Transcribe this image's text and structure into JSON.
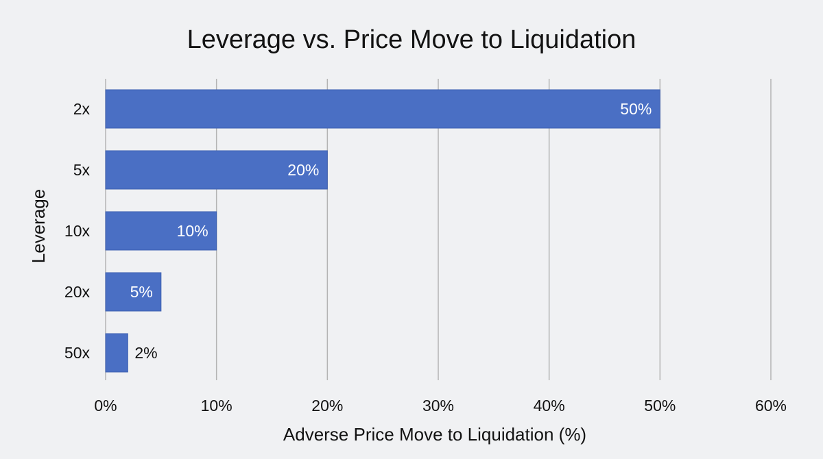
{
  "chart_data": {
    "type": "bar",
    "orientation": "horizontal",
    "title": "Leverage vs. Price Move to Liquidation",
    "xlabel": "Adverse Price Move to Liquidation (%)",
    "ylabel": "Leverage",
    "categories": [
      "2x",
      "5x",
      "10x",
      "20x",
      "50x"
    ],
    "values": [
      50,
      20,
      10,
      5,
      2
    ],
    "data_labels": [
      "50%",
      "20%",
      "10%",
      "5%",
      "2%"
    ],
    "xlim": [
      0,
      60
    ],
    "x_ticks": [
      0,
      10,
      20,
      30,
      40,
      50,
      60
    ],
    "x_tick_labels": [
      "0%",
      "10%",
      "20%",
      "30%",
      "40%",
      "50%",
      "60%"
    ],
    "grid": "vertical",
    "legend": "none",
    "colors": {
      "bar": "#4a6fc4",
      "bar_edge": "#3c5fb0",
      "gridline": "#b4b4b4",
      "label_inside": "#ffffff",
      "label_outside": "#121212",
      "background": "#f0f1f3"
    }
  }
}
